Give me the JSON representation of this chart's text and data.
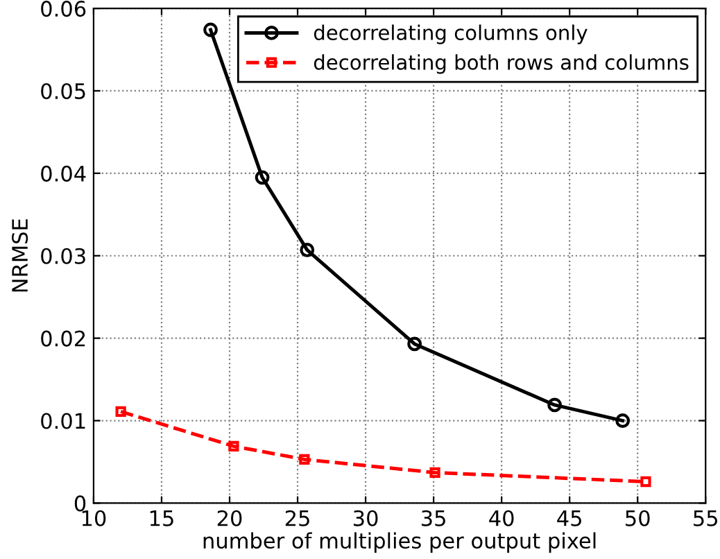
{
  "chart_data": {
    "type": "line",
    "xlabel": "number of multiplies per output pixel",
    "ylabel": "NRMSE",
    "xlim": [
      10,
      55
    ],
    "xticks": [
      10,
      15,
      20,
      25,
      30,
      35,
      40,
      45,
      50,
      55
    ],
    "ylim": [
      0,
      0.06
    ],
    "yticks": [
      0,
      0.01,
      0.02,
      0.03,
      0.04,
      0.05,
      0.06
    ],
    "grid": true,
    "legend": "top right",
    "series": [
      {
        "name": "decorrelating columns only",
        "color": "#000000",
        "marker": "circle",
        "line_style": "solid",
        "x": [
          18.6,
          22.4,
          25.7,
          33.6,
          43.9,
          48.9
        ],
        "values": [
          0.0574,
          0.0395,
          0.0307,
          0.0193,
          0.0119,
          0.01
        ]
      },
      {
        "name": "decorrelating both rows and columns",
        "color": "#ff0000",
        "marker": "square",
        "line_style": "dashed",
        "x": [
          12.0,
          20.3,
          25.5,
          35.1,
          50.6
        ],
        "values": [
          0.0111,
          0.0069,
          0.0053,
          0.0037,
          0.0026
        ]
      }
    ]
  }
}
